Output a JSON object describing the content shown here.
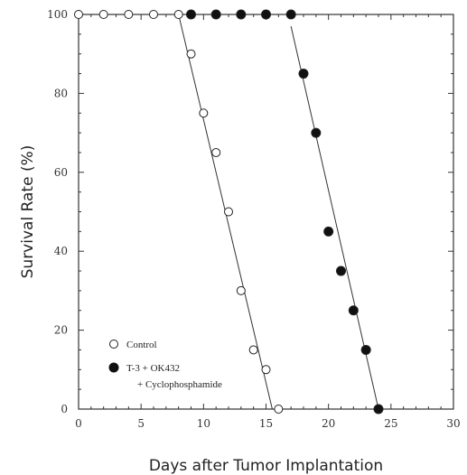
{
  "chart_data": {
    "type": "scatter",
    "xlabel": "Days after Tumor Implantation",
    "ylabel": "Survival Rate (%)",
    "xlim": [
      0,
      30
    ],
    "ylim": [
      0,
      100
    ],
    "x_ticks": [
      "0",
      "5",
      "10",
      "15",
      "20",
      "25",
      "30"
    ],
    "y_ticks": [
      "0",
      "20",
      "40",
      "60",
      "80",
      "100"
    ],
    "grid": false,
    "legend_position": "bottom-left",
    "series": [
      {
        "name": "Control",
        "marker": "open-circle",
        "points": [
          [
            0,
            100
          ],
          [
            2,
            100
          ],
          [
            4,
            100
          ],
          [
            6,
            100
          ],
          [
            8,
            100
          ],
          [
            9,
            90
          ],
          [
            10,
            75
          ],
          [
            11,
            65
          ],
          [
            12,
            50
          ],
          [
            13,
            30
          ],
          [
            14,
            15
          ],
          [
            15,
            10
          ],
          [
            16,
            0
          ]
        ],
        "fit_line": [
          [
            8,
            100
          ],
          [
            15.5,
            0
          ]
        ]
      },
      {
        "name": "T-3 + OK432",
        "name_line2": "+ Cyclophosphamide",
        "marker": "filled-circle",
        "points": [
          [
            9,
            100
          ],
          [
            11,
            100
          ],
          [
            13,
            100
          ],
          [
            15,
            100
          ],
          [
            17,
            100
          ],
          [
            18,
            85
          ],
          [
            19,
            70
          ],
          [
            20,
            45
          ],
          [
            21,
            35
          ],
          [
            22,
            25
          ],
          [
            23,
            15
          ],
          [
            24,
            0
          ]
        ],
        "fit_line": [
          [
            17,
            97
          ],
          [
            24,
            0
          ]
        ]
      }
    ]
  }
}
